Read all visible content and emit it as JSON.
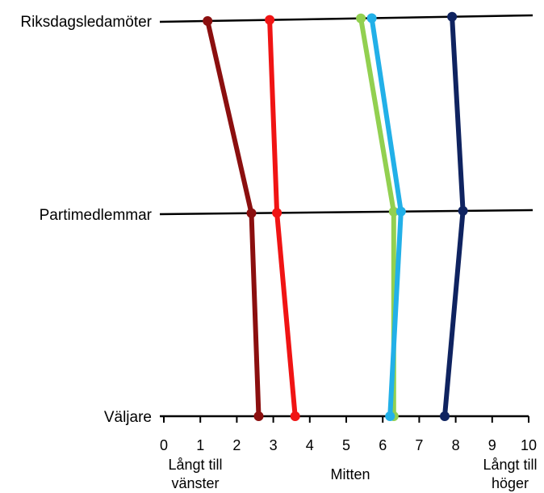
{
  "chart_data": {
    "type": "line",
    "title": "",
    "xlabel": "",
    "ylabel": "",
    "xlim": [
      0,
      10
    ],
    "x_ticks": [
      "0",
      "1",
      "2",
      "3",
      "4",
      "5",
      "6",
      "7",
      "8",
      "9",
      "10"
    ],
    "levels": [
      "Riksdagsledamöter",
      "Partimedlemmar",
      "Väljare"
    ],
    "annotations": {
      "left": [
        "Långt till",
        "vänster"
      ],
      "center": [
        "Mitten"
      ],
      "right": [
        "Långt till",
        "höger"
      ]
    },
    "grid": false,
    "legend": "none",
    "series": [
      {
        "color": "#8b0f0f",
        "values": [
          1.2,
          2.4,
          2.6
        ]
      },
      {
        "color": "#f01414",
        "values": [
          2.9,
          3.1,
          3.6
        ]
      },
      {
        "color": "#92d050",
        "values": [
          5.4,
          6.3,
          6.3
        ]
      },
      {
        "color": "#22b0e8",
        "values": [
          5.7,
          6.5,
          6.2
        ]
      },
      {
        "color": "#0f2360",
        "values": [
          7.9,
          8.2,
          7.7
        ]
      }
    ]
  }
}
